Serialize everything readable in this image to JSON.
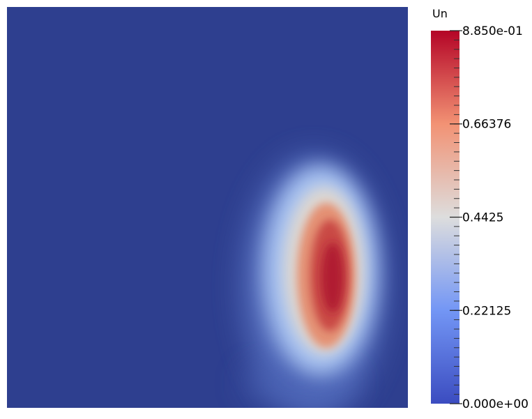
{
  "chart_data": {
    "type": "heatmap",
    "title": "",
    "colorbar": {
      "label": "Un",
      "min": 0.0,
      "max": 0.885,
      "min_label": "0.000e+00",
      "max_label": "8.850e-01",
      "ticks": [
        {
          "value": 0.66376,
          "label": "0.66376"
        },
        {
          "value": 0.4425,
          "label": "0.4425"
        },
        {
          "value": 0.22125,
          "label": "0.22125"
        }
      ],
      "colormap": "cool-to-warm",
      "colors": {
        "low": "#3b4cc0",
        "mid": "#dddddd",
        "high": "#b40426"
      }
    },
    "field": {
      "background_value": 0.0,
      "background_color": "#2e3f8f",
      "hotspot": {
        "peak_value": 0.885,
        "shape": "vertical elongated ellipse",
        "location": "right-center of domain, lower half"
      }
    }
  }
}
